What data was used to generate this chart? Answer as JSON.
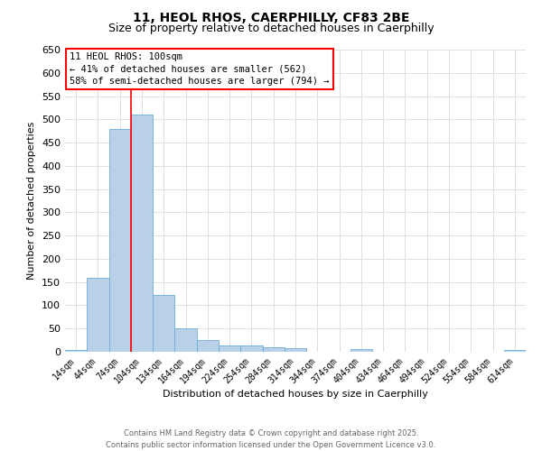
{
  "title_line1": "11, HEOL RHOS, CAERPHILLY, CF83 2BE",
  "title_line2": "Size of property relative to detached houses in Caerphilly",
  "xlabel": "Distribution of detached houses by size in Caerphilly",
  "ylabel": "Number of detached properties",
  "categories": [
    "14sqm",
    "44sqm",
    "74sqm",
    "104sqm",
    "134sqm",
    "164sqm",
    "194sqm",
    "224sqm",
    "254sqm",
    "284sqm",
    "314sqm",
    "344sqm",
    "374sqm",
    "404sqm",
    "434sqm",
    "464sqm",
    "494sqm",
    "524sqm",
    "554sqm",
    "584sqm",
    "614sqm"
  ],
  "values": [
    4,
    160,
    480,
    510,
    122,
    51,
    25,
    14,
    14,
    10,
    7,
    0,
    0,
    5,
    0,
    0,
    0,
    0,
    0,
    0,
    4
  ],
  "bar_color": "#b8d0e8",
  "bar_edge_color": "#6aaed6",
  "ylim": [
    0,
    650
  ],
  "yticks": [
    0,
    50,
    100,
    150,
    200,
    250,
    300,
    350,
    400,
    450,
    500,
    550,
    600,
    650
  ],
  "vline_color": "red",
  "vline_x_index": 2.5,
  "annotation_text": "11 HEOL RHOS: 100sqm\n← 41% of detached houses are smaller (562)\n58% of semi-detached houses are larger (794) →",
  "annotation_box_facecolor": "white",
  "annotation_box_edgecolor": "red",
  "footer_line1": "Contains HM Land Registry data © Crown copyright and database right 2025.",
  "footer_line2": "Contains public sector information licensed under the Open Government Licence v3.0.",
  "bg_color": "white",
  "grid_color": "#e0e0e0",
  "title_fontsize": 10,
  "subtitle_fontsize": 9,
  "ylabel_fontsize": 8,
  "xlabel_fontsize": 8
}
